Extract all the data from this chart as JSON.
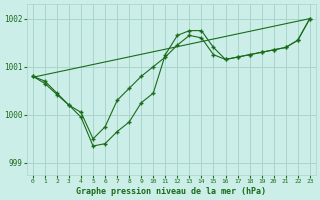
{
  "title": "Graphe pression niveau de la mer (hPa)",
  "bg_color": "#cceee8",
  "line_color": "#1a6b1a",
  "grid_color": "#aad4cc",
  "text_color": "#1a6b1a",
  "xlim": [
    -0.5,
    23.5
  ],
  "ylim": [
    998.75,
    1002.3
  ],
  "yticks": [
    999,
    1000,
    1001,
    1002
  ],
  "xticks": [
    0,
    1,
    2,
    3,
    4,
    5,
    6,
    7,
    8,
    9,
    10,
    11,
    12,
    13,
    14,
    15,
    16,
    17,
    18,
    19,
    20,
    21,
    22,
    23
  ],
  "series1_x": [
    0,
    1,
    2,
    3,
    4,
    5,
    6,
    7,
    8,
    9,
    10,
    11,
    12,
    13,
    14,
    15,
    16,
    17,
    18,
    19,
    20,
    21,
    22,
    23
  ],
  "series1_y": [
    1000.8,
    1000.7,
    1000.45,
    1000.2,
    999.95,
    999.35,
    999.4,
    999.65,
    999.85,
    1000.25,
    1000.45,
    1001.25,
    1001.65,
    1001.75,
    1001.75,
    1001.4,
    1001.15,
    1001.2,
    1001.25,
    1001.3,
    1001.35,
    1001.4,
    1001.55,
    1002.0
  ],
  "series2_x": [
    0,
    1,
    2,
    3,
    4,
    5,
    6,
    7,
    8,
    9,
    10,
    11,
    12,
    13,
    14,
    15,
    16,
    17,
    18,
    19,
    20,
    21,
    22,
    23
  ],
  "series2_y": [
    1000.8,
    1000.65,
    1000.42,
    1000.2,
    1000.05,
    999.5,
    999.75,
    1000.3,
    1000.55,
    1000.8,
    1001.0,
    1001.2,
    1001.45,
    1001.65,
    1001.6,
    1001.25,
    1001.15,
    1001.2,
    1001.25,
    1001.3,
    1001.35,
    1001.4,
    1001.55,
    1002.0
  ],
  "series3_x": [
    0,
    23
  ],
  "series3_y": [
    1000.78,
    1002.0
  ]
}
